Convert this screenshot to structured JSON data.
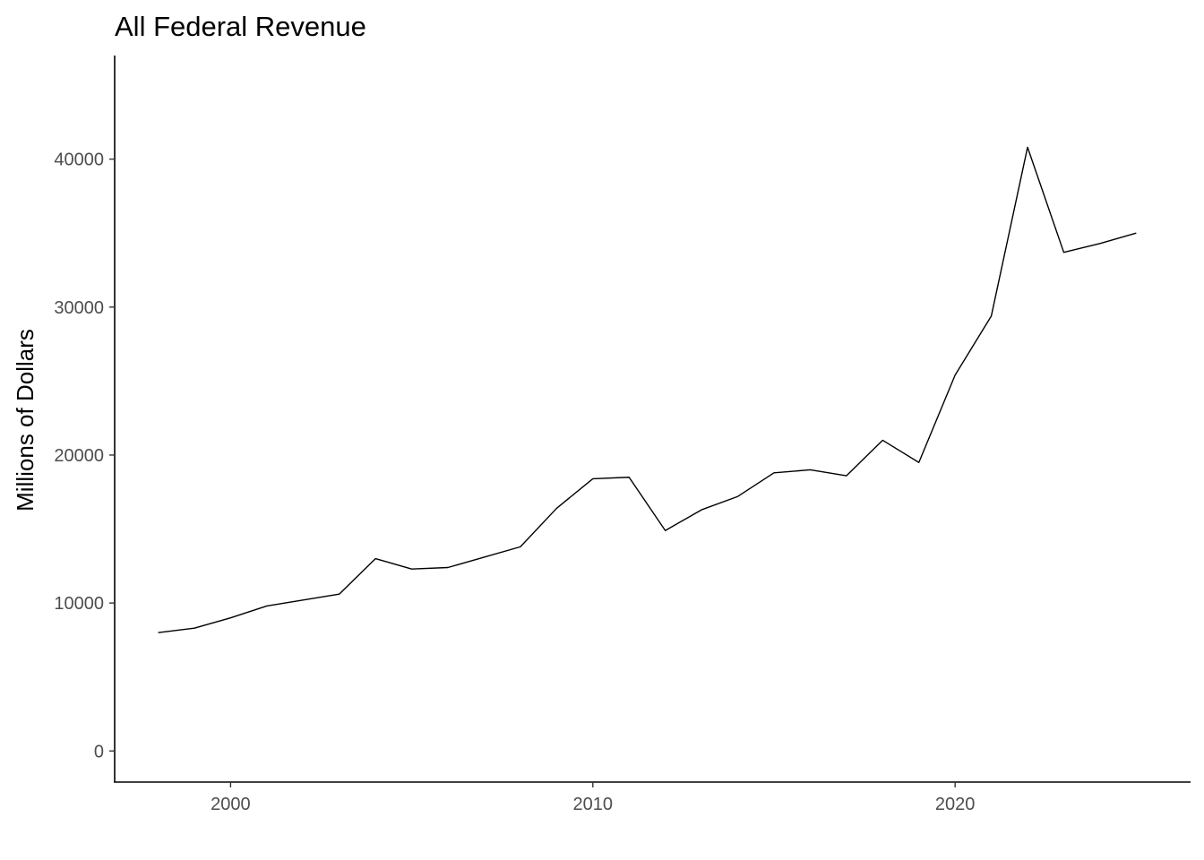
{
  "chart_data": {
    "type": "line",
    "title": "All Federal Revenue",
    "xlabel": "",
    "ylabel": "Millions of Dollars",
    "xlim": [
      1996.8,
      2026.5
    ],
    "ylim": [
      -2100,
      47000
    ],
    "x_ticks": [
      2000,
      2010,
      2020
    ],
    "y_ticks": [
      0,
      10000,
      20000,
      30000,
      40000
    ],
    "grid": false,
    "legend": "none",
    "line_color": "#000000",
    "series": [
      {
        "x": [
          1998,
          1999,
          2000,
          2001,
          2002,
          2003,
          2004,
          2005,
          2006,
          2007,
          2008,
          2009,
          2010,
          2011,
          2012,
          2013,
          2014,
          2015,
          2016,
          2017,
          2018,
          2019,
          2020,
          2021,
          2022,
          2023,
          2024,
          2025
        ],
        "values": [
          8000,
          8300,
          9000,
          9800,
          10200,
          10600,
          13000,
          12300,
          12400,
          13100,
          13800,
          16400,
          18400,
          18500,
          14900,
          16300,
          17200,
          18800,
          19000,
          18600,
          21000,
          19500,
          25400,
          29400,
          40800,
          33700,
          34300,
          35000
        ]
      }
    ]
  }
}
